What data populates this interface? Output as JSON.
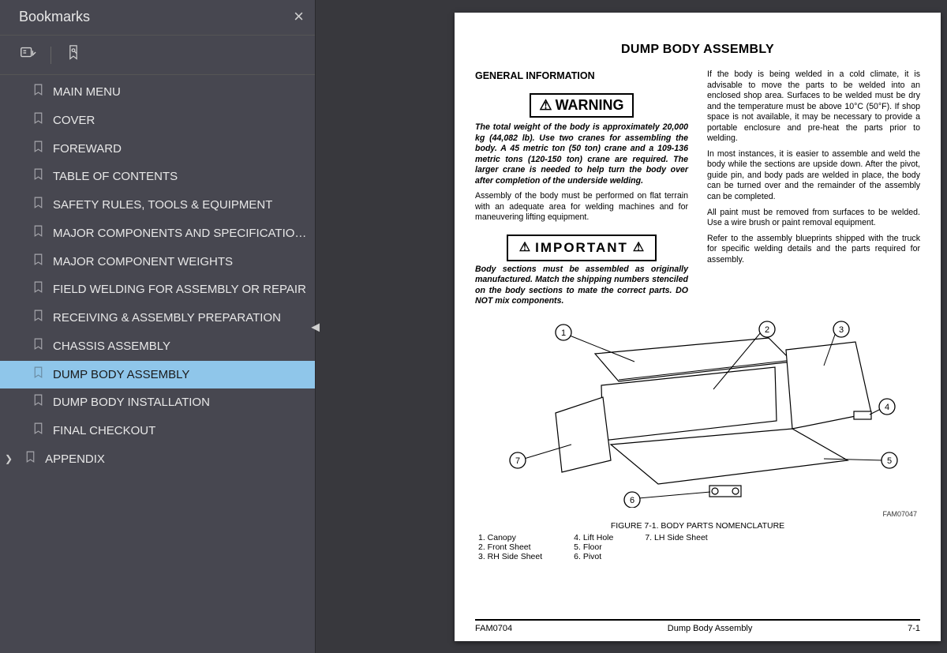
{
  "sidebar": {
    "title": "Bookmarks",
    "bookmarks": [
      {
        "label": "MAIN MENU",
        "selected": false,
        "hasChildren": false
      },
      {
        "label": "COVER",
        "selected": false,
        "hasChildren": false
      },
      {
        "label": "FOREWARD",
        "selected": false,
        "hasChildren": false
      },
      {
        "label": "TABLE OF CONTENTS",
        "selected": false,
        "hasChildren": false
      },
      {
        "label": "SAFETY RULES, TOOLS & EQUIPMENT",
        "selected": false,
        "hasChildren": false
      },
      {
        "label": "MAJOR COMPONENTS AND SPECIFICATIONS",
        "selected": false,
        "hasChildren": false
      },
      {
        "label": "MAJOR COMPONENT WEIGHTS",
        "selected": false,
        "hasChildren": false
      },
      {
        "label": "FIELD WELDING FOR ASSEMBLY OR REPAIR",
        "selected": false,
        "hasChildren": false
      },
      {
        "label": "RECEIVING & ASSEMBLY PREPARATION",
        "selected": false,
        "hasChildren": false
      },
      {
        "label": "CHASSIS ASSEMBLY",
        "selected": false,
        "hasChildren": false
      },
      {
        "label": "DUMP BODY ASSEMBLY",
        "selected": true,
        "hasChildren": false
      },
      {
        "label": "DUMP BODY INSTALLATION",
        "selected": false,
        "hasChildren": false
      },
      {
        "label": "FINAL CHECKOUT",
        "selected": false,
        "hasChildren": false
      },
      {
        "label": "APPENDIX",
        "selected": false,
        "hasChildren": true
      }
    ]
  },
  "page": {
    "title": "DUMP BODY ASSEMBLY",
    "left": {
      "heading": "GENERAL INFORMATION",
      "warning_label": "WARNING",
      "warning_text": "The total weight of the body is approximately 20,000 kg (44,082 lb). Use two cranes for assembling the body. A 45 metric ton (50 ton) crane and a 109-136 metric tons (120-150 ton) crane are required. The larger crane is needed to help turn the body over after completion of the underside welding.",
      "para1": "Assembly of the body must be performed on flat terrain with an adequate area for welding machines and for maneuvering lifting equipment.",
      "important_label": "IMPORTANT",
      "important_text": "Body sections must be assembled as originally manufactured. Match the shipping numbers stenciled on the body sections to mate the correct parts. DO NOT mix components."
    },
    "right": {
      "para1": "If the body is being welded in a cold climate, it is advisable to move the parts to be welded into an enclosed shop area. Surfaces to be welded must be dry and the temperature must be above 10°C (50°F). If shop space is not available, it may be necessary to provide a portable enclosure and pre-heat the parts prior to welding.",
      "para2": "In most instances, it is easier to assemble and weld the body while the sections are upside down. After the pivot, guide pin, and body pads are welded in place, the body can be turned over and the remainder of the assembly can be completed.",
      "para3": "All paint must be removed from surfaces to be welded. Use a wire brush or paint removal equipment.",
      "para4": "Refer to the assembly blueprints shipped with the truck for specific welding details and the parts required for assembly."
    },
    "figure": {
      "id": "FAM07047",
      "caption": "FIGURE 7-1. BODY PARTS NOMENCLATURE",
      "callouts": [
        "1",
        "2",
        "3",
        "4",
        "5",
        "6",
        "7"
      ],
      "legend_col1": [
        "1. Canopy",
        "2. Front Sheet",
        "3. RH Side Sheet"
      ],
      "legend_col2": [
        "4. Lift Hole",
        "5. Floor",
        "6. Pivot"
      ],
      "legend_col3": [
        "7. LH Side Sheet"
      ]
    },
    "footer": {
      "left": "FAM0704",
      "center": "Dump Body Assembly",
      "right": "7-1"
    }
  },
  "colors": {
    "sidebar_bg": "#474750",
    "sidebar_text": "#e8e8e8",
    "selected_bg": "#8fc6ea",
    "page_bg": "#ffffff",
    "app_bg": "#38383d"
  }
}
